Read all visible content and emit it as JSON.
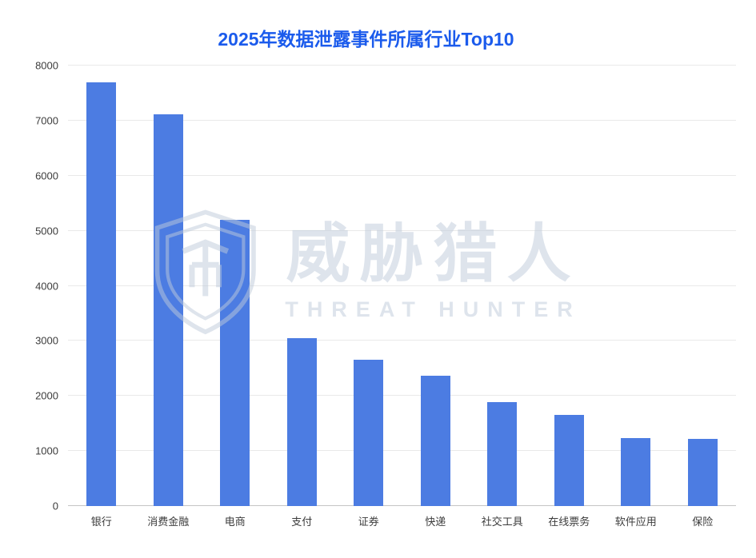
{
  "title": "2025年数据泄露事件所属行业Top10",
  "watermark": {
    "logo_icon": "threat-hunter-shield-icon",
    "text_cn": "威胁猎人",
    "text_en": "THREAT HUNTER"
  },
  "colors": {
    "title": "#1b5bec",
    "bar": "#4c7ce2",
    "gridline": "#e9e9e9",
    "axis_line": "#c4c4c4",
    "axis_text": "#3c3c3c",
    "watermark": "#becadb"
  },
  "chart_data": {
    "type": "bar",
    "title": "2025年数据泄露事件所属行业Top10",
    "categories": [
      "银行",
      "消费金融",
      "电商",
      "支付",
      "证券",
      "快递",
      "社交工具",
      "在线票务",
      "软件应用",
      "保险"
    ],
    "values": [
      7700,
      7120,
      5200,
      3050,
      2650,
      2370,
      1890,
      1660,
      1230,
      1220
    ],
    "xlabel": "",
    "ylabel": "",
    "ylim": [
      0,
      8000
    ],
    "ytick_step": 1000,
    "grid": true,
    "legend": false
  }
}
